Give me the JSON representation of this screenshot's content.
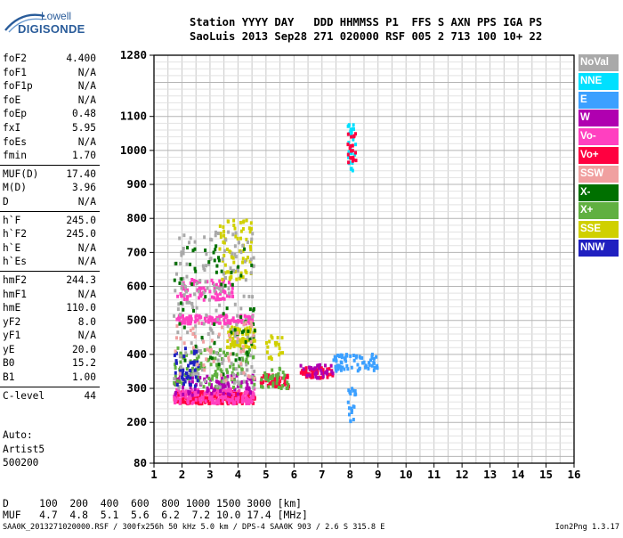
{
  "logo": {
    "line1": "Lowell",
    "line2": "DIGISONDE"
  },
  "header": {
    "line1": "Station YYYY DAY   DDD HHMMSS P1  FFS S AXN PPS IGA PS",
    "line2": "SaoLuis 2013 Sep28 271 020000 RSF 005 2 713 100 10+ 22"
  },
  "params": [
    {
      "group": [
        {
          "label": "foF2",
          "value": "4.400"
        },
        {
          "label": "foF1",
          "value": "N/A"
        },
        {
          "label": "foF1p",
          "value": "N/A"
        },
        {
          "label": "foE",
          "value": "N/A"
        },
        {
          "label": "foEp",
          "value": "0.48"
        },
        {
          "label": "fxI",
          "value": "5.95"
        },
        {
          "label": "foEs",
          "value": "N/A"
        },
        {
          "label": "fmin",
          "value": "1.70"
        }
      ]
    },
    {
      "group": [
        {
          "label": "MUF(D)",
          "value": "17.40"
        },
        {
          "label": "M(D)",
          "value": "3.96"
        },
        {
          "label": "D",
          "value": "N/A"
        }
      ]
    },
    {
      "group": [
        {
          "label": "h`F",
          "value": "245.0"
        },
        {
          "label": "h`F2",
          "value": "245.0"
        },
        {
          "label": "h`E",
          "value": "N/A"
        },
        {
          "label": "h`Es",
          "value": "N/A"
        }
      ]
    },
    {
      "group": [
        {
          "label": "hmF2",
          "value": "244.3"
        },
        {
          "label": "hmF1",
          "value": "N/A"
        },
        {
          "label": "hmE",
          "value": "110.0"
        },
        {
          "label": "yF2",
          "value": "8.0"
        },
        {
          "label": "yF1",
          "value": "N/A"
        },
        {
          "label": "yE",
          "value": "20.0"
        },
        {
          "label": "B0",
          "value": "15.2"
        },
        {
          "label": "B1",
          "value": "1.00"
        }
      ]
    },
    {
      "group": [
        {
          "label": "C-level",
          "value": "44"
        }
      ]
    }
  ],
  "notes": [
    "Auto:",
    "Artist5",
    "500200"
  ],
  "d_table": {
    "line1": "D     100  200  400  600  800 1000 1500 3000 [km]",
    "line2": "MUF   4.7  4.8  5.1  5.6  6.2  7.2 10.0 17.4 [MHz]"
  },
  "footer_left": "SAA0K_2013271020000.RSF / 300fx256h 50 kHz 5.0 km / DPS-4 SAA0K 903 / 2.6 S 315.8 E",
  "footer_right": "Ion2Png 1.3.17",
  "legend": [
    {
      "label": "NoVal",
      "color": "#a9a9a9"
    },
    {
      "label": "NNE",
      "color": "#00e0ff"
    },
    {
      "label": "E",
      "color": "#3ca0ff"
    },
    {
      "label": "W",
      "color": "#b000b0"
    },
    {
      "label": "Vo-",
      "color": "#ff40c0"
    },
    {
      "label": "Vo+",
      "color": "#ff0040"
    },
    {
      "label": "SSW",
      "color": "#f0a0a0"
    },
    {
      "label": "X-",
      "color": "#007000"
    },
    {
      "label": "X+",
      "color": "#60b040"
    },
    {
      "label": "SSE",
      "color": "#d0d000"
    },
    {
      "label": "NNW",
      "color": "#2020c0"
    }
  ],
  "chart_data": {
    "type": "scatter",
    "xlim": [
      1,
      16
    ],
    "ylim": [
      80,
      1280
    ],
    "x_ticks": [
      1,
      2,
      3,
      4,
      5,
      6,
      7,
      8,
      9,
      10,
      11,
      12,
      13,
      14,
      15,
      16
    ],
    "y_ticks": [
      80,
      200,
      300,
      400,
      500,
      600,
      700,
      800,
      900,
      1000,
      1100,
      1280
    ],
    "grid": true,
    "clusters": [
      {
        "name": "Vo+",
        "x": [
          1.7,
          4.6
        ],
        "y": [
          255,
          290
        ],
        "n": 260
      },
      {
        "name": "Vo-",
        "x": [
          1.7,
          4.6
        ],
        "y": [
          255,
          300
        ],
        "n": 160
      },
      {
        "name": "W",
        "x": [
          1.7,
          4.6
        ],
        "y": [
          280,
          340
        ],
        "n": 90
      },
      {
        "name": "Vo-",
        "x": [
          1.8,
          4.6
        ],
        "y": [
          490,
          515
        ],
        "n": 120
      },
      {
        "name": "Vo-",
        "x": [
          1.8,
          3.8
        ],
        "y": [
          560,
          620
        ],
        "n": 80
      },
      {
        "name": "SSE",
        "x": [
          3.6,
          4.6
        ],
        "y": [
          420,
          480
        ],
        "n": 90
      },
      {
        "name": "SSE",
        "x": [
          3.3,
          4.5
        ],
        "y": [
          620,
          800
        ],
        "n": 70
      },
      {
        "name": "X+",
        "x": [
          1.7,
          4.6
        ],
        "y": [
          300,
          420
        ],
        "n": 120
      },
      {
        "name": "NoVal",
        "x": [
          1.7,
          4.6
        ],
        "y": [
          300,
          760
        ],
        "n": 180
      },
      {
        "name": "X-",
        "x": [
          1.7,
          4.6
        ],
        "y": [
          340,
          720
        ],
        "n": 70
      },
      {
        "name": "NNW",
        "x": [
          1.7,
          2.6
        ],
        "y": [
          300,
          420
        ],
        "n": 40
      },
      {
        "name": "SSW",
        "x": [
          1.7,
          4.6
        ],
        "y": [
          320,
          500
        ],
        "n": 50
      },
      {
        "name": "Vo+",
        "x": [
          4.8,
          5.8
        ],
        "y": [
          300,
          340
        ],
        "n": 60
      },
      {
        "name": "X+",
        "x": [
          4.8,
          5.8
        ],
        "y": [
          300,
          360
        ],
        "n": 40
      },
      {
        "name": "Vo+",
        "x": [
          6.2,
          7.4
        ],
        "y": [
          330,
          360
        ],
        "n": 50
      },
      {
        "name": "W",
        "x": [
          6.2,
          7.4
        ],
        "y": [
          330,
          370
        ],
        "n": 30
      },
      {
        "name": "E",
        "x": [
          7.4,
          9.0
        ],
        "y": [
          350,
          400
        ],
        "n": 70
      },
      {
        "name": "NNE",
        "x": [
          7.9,
          8.2
        ],
        "y": [
          940,
          1080
        ],
        "n": 30
      },
      {
        "name": "Vo+",
        "x": [
          7.9,
          8.2
        ],
        "y": [
          950,
          1060
        ],
        "n": 20
      },
      {
        "name": "E",
        "x": [
          7.9,
          8.2
        ],
        "y": [
          200,
          300
        ],
        "n": 20
      },
      {
        "name": "SSE",
        "x": [
          5.0,
          5.6
        ],
        "y": [
          380,
          460
        ],
        "n": 20
      }
    ]
  }
}
